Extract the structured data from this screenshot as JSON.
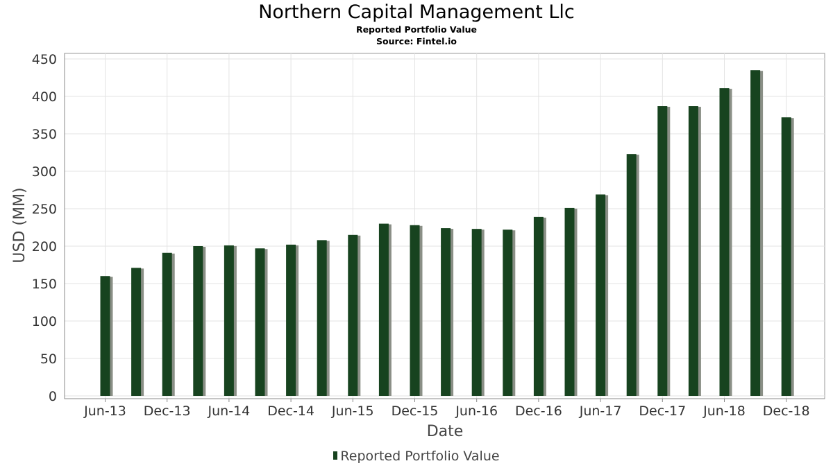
{
  "chart_data": {
    "type": "bar",
    "title": "Northern Capital Management Llc",
    "subtitle": "Reported Portfolio Value",
    "source": "Source: Fintel.io",
    "xlabel": "Date",
    "ylabel": "USD (MM)",
    "ylim": [
      0,
      450
    ],
    "yticks": [
      0,
      50,
      100,
      150,
      200,
      250,
      300,
      350,
      400,
      450
    ],
    "xtick_labels": [
      "Jun-13",
      "Dec-13",
      "Jun-14",
      "Dec-14",
      "Jun-15",
      "Dec-15",
      "Jun-16",
      "Dec-16",
      "Jun-17",
      "Dec-17",
      "Jun-18",
      "Dec-18"
    ],
    "categories": [
      "Jun-13",
      "Sep-13",
      "Dec-13",
      "Mar-14",
      "Jun-14",
      "Sep-14",
      "Dec-14",
      "Mar-15",
      "Jun-15",
      "Sep-15",
      "Dec-15",
      "Mar-16",
      "Jun-16",
      "Sep-16",
      "Dec-16",
      "Mar-17",
      "Jun-17",
      "Sep-17",
      "Dec-17",
      "Mar-18",
      "Jun-18",
      "Sep-18",
      "Dec-18"
    ],
    "series": [
      {
        "name": "Reported Portfolio Value",
        "color": "#17431f",
        "values": [
          160,
          171,
          191,
          200,
          201,
          197,
          202,
          208,
          215,
          230,
          228,
          224,
          223,
          222,
          239,
          251,
          269,
          323,
          387,
          387,
          411,
          435,
          372
        ]
      }
    ],
    "grid": true,
    "legend_position": "bottom-center"
  }
}
